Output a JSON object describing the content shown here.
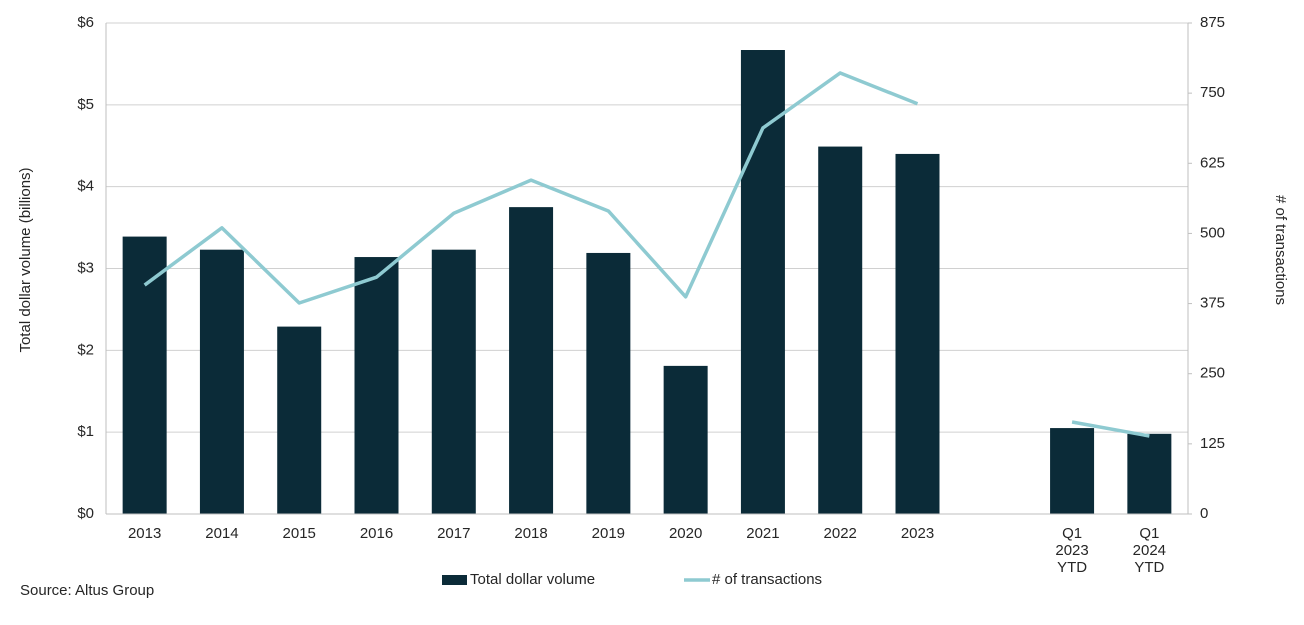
{
  "chart_data": {
    "type": "bar-line",
    "categories": [
      "2013",
      "2014",
      "2015",
      "2016",
      "2017",
      "2018",
      "2019",
      "2020",
      "2021",
      "2022",
      "2023",
      null,
      "Q1 2023 YTD",
      "Q1 2024 YTD"
    ],
    "series": [
      {
        "name": "Total dollar volume",
        "type": "bar",
        "color": "#0b2b38",
        "axis": "y",
        "values": [
          3.39,
          3.23,
          2.29,
          3.14,
          3.23,
          3.75,
          3.19,
          1.81,
          5.67,
          4.49,
          4.4,
          null,
          1.05,
          0.98
        ]
      },
      {
        "name": "# of transactions",
        "type": "line",
        "color": "#8ecad1",
        "axis": "y2",
        "values": [
          408,
          510,
          376,
          422,
          536,
          595,
          540,
          387,
          688,
          786,
          731,
          null,
          164,
          139
        ]
      }
    ],
    "ylabel": "Total dollar volume (billions)",
    "y2label": "# of transactions",
    "ylim": [
      0,
      6
    ],
    "yticks": [
      {
        "value": 0,
        "label": "$0"
      },
      {
        "value": 1,
        "label": "$1"
      },
      {
        "value": 2,
        "label": "$2"
      },
      {
        "value": 3,
        "label": "$3"
      },
      {
        "value": 4,
        "label": "$4"
      },
      {
        "value": 5,
        "label": "$5"
      },
      {
        "value": 6,
        "label": "$6"
      }
    ],
    "y2lim": [
      0,
      875
    ],
    "y2ticks": [
      0,
      125,
      250,
      375,
      500,
      625,
      750,
      875
    ],
    "grid": true,
    "legend": "bottom",
    "source": "Source:  Altus Group"
  }
}
